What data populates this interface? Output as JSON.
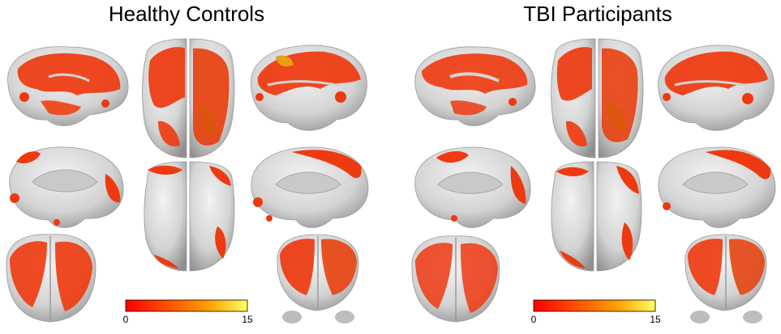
{
  "panels": [
    {
      "title": "Healthy Controls",
      "colorbar": {
        "min": "0",
        "max": "15"
      }
    },
    {
      "title": "TBI Participants",
      "colorbar": {
        "min": "0",
        "max": "15"
      }
    }
  ],
  "colormap": [
    "#ff0000",
    "#ff4a00",
    "#ff9600",
    "#ffdc00",
    "#ffff55"
  ],
  "cortex_color": "#d9d9d9",
  "activation_color": "#f23a12"
}
